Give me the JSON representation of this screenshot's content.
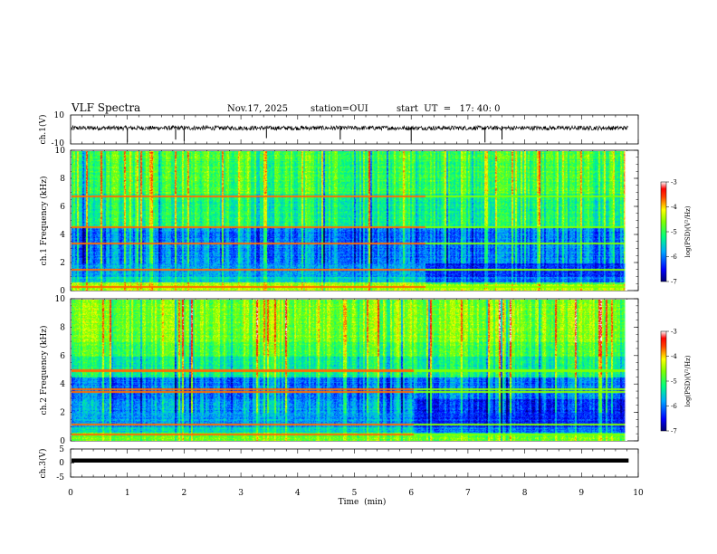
{
  "header": {
    "title": "VLF Spectra",
    "date": "Nov.17, 2025",
    "station": "station=OUI",
    "start": "start  UT  =   17: 40: 0"
  },
  "chart_data": [
    {
      "type": "line",
      "id": "ch1-waveform",
      "ylabel": "ch.1(V)",
      "ylim": [
        -10,
        10
      ],
      "ytick_labels": [
        "10",
        "-10"
      ],
      "x_range": [
        0,
        10
      ],
      "baseline_level_v": 1.0,
      "noise_amplitude_v": 1.5,
      "spike_times_min": [
        1.0,
        1.85,
        2.0,
        3.45,
        4.75,
        6.0,
        7.3,
        7.6
      ],
      "spike_depths_v": [
        -9,
        -7,
        -8,
        -6,
        -7,
        -8,
        -9,
        -7
      ]
    },
    {
      "type": "heatmap",
      "id": "ch1-spectrogram",
      "ylabel": "ch.1 Frequency  (kHz)",
      "ylim": [
        0,
        10
      ],
      "ytick_labels": [
        "0",
        "2",
        "4",
        "6",
        "8",
        "10"
      ],
      "x_range": [
        0,
        9.83
      ],
      "colorbar_label": "log(PSD)(V²/Hz)",
      "colorbar_ticks": [
        "-3",
        "-4",
        "-5",
        "-6",
        "-7"
      ],
      "colorbar_range": [
        -7,
        -3
      ],
      "band_switch_time_min": 6.25,
      "persistent_lines_khz": [
        0.3,
        1.5,
        3.4,
        4.6,
        6.8
      ],
      "low_band_khz": [
        1.0,
        2.0
      ]
    },
    {
      "type": "heatmap",
      "id": "ch2-spectrogram",
      "ylabel": "ch.2 Frequency  (kHz)",
      "ylim": [
        0,
        10
      ],
      "ytick_labels": [
        "0",
        "2",
        "4",
        "6",
        "8",
        "10"
      ],
      "x_range": [
        0,
        9.83
      ],
      "colorbar_label": "log(PSD)(V²/Hz)",
      "colorbar_ticks": [
        "-3",
        "-4",
        "-5",
        "-6",
        "-7"
      ],
      "colorbar_range": [
        -7,
        -3
      ],
      "band_switch_time_min": 6.05,
      "persistent_lines_khz": [
        0.5,
        1.2,
        3.5,
        3.7,
        5.0
      ],
      "low_band_khz": [
        1.0,
        3.0
      ]
    },
    {
      "type": "line",
      "id": "ch3-waveform",
      "ylabel": "ch.3(V)",
      "ylim": [
        -5,
        5
      ],
      "ytick_labels": [
        "5",
        "0",
        "-5"
      ],
      "x_range": [
        0,
        9.83
      ],
      "level_v": 0.0
    }
  ],
  "xaxis": {
    "label": "Time  (min)",
    "range": [
      0,
      10
    ],
    "tick_labels": [
      "0",
      "1",
      "2",
      "3",
      "4",
      "5",
      "6",
      "7",
      "8",
      "9",
      "10"
    ]
  },
  "colors": {
    "ink": "#000000",
    "background": "#ffffff"
  }
}
